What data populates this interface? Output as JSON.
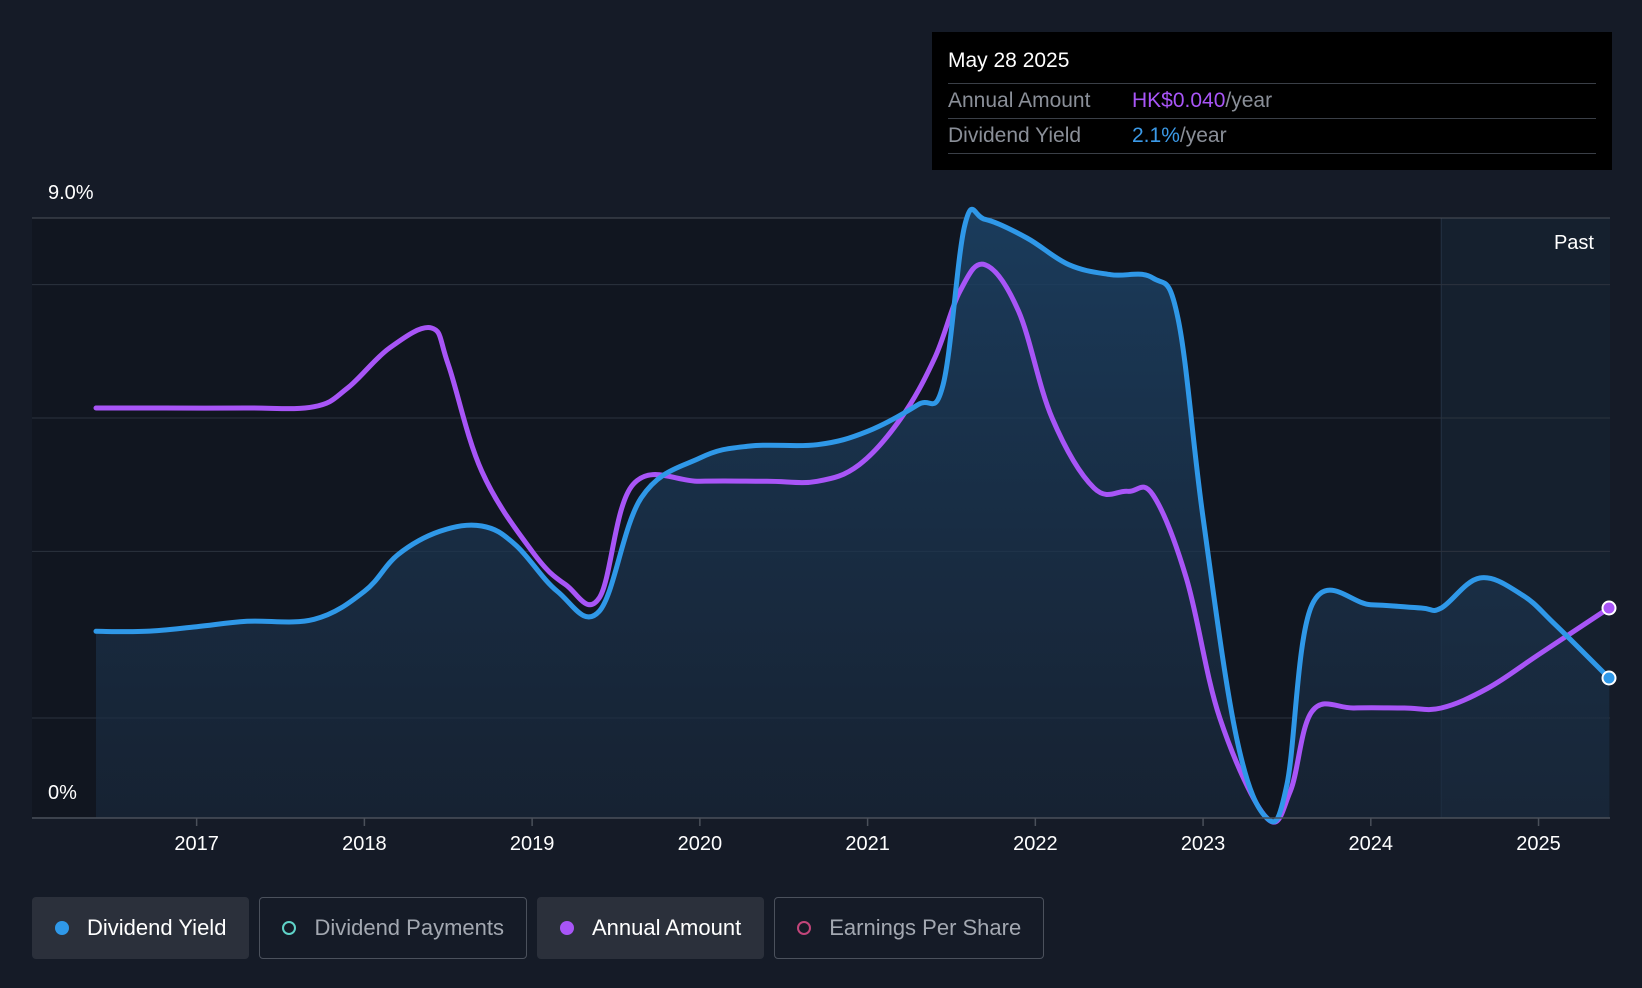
{
  "tooltip": {
    "date": "May 28 2025",
    "rows": [
      {
        "label": "Annual Amount",
        "value": "HK$0.040",
        "unit": "/year",
        "color": "#a855f7"
      },
      {
        "label": "Dividend Yield",
        "value": "2.1%",
        "unit": "/year",
        "color": "#3b9ae8"
      }
    ]
  },
  "past_label": "Past",
  "legend": [
    {
      "label": "Dividend Yield",
      "color": "#2f98e8",
      "filled": true,
      "active": true
    },
    {
      "label": "Dividend Payments",
      "color": "#5fd3c8",
      "filled": false,
      "active": false
    },
    {
      "label": "Annual Amount",
      "color": "#a855f7",
      "filled": true,
      "active": true
    },
    {
      "label": "Earnings Per Share",
      "color": "#c2457a",
      "filled": false,
      "active": false
    }
  ],
  "chart_data": {
    "type": "line",
    "y_axis": {
      "top_label": "9.0%",
      "bottom_label": "0%",
      "ylim": [
        0,
        9.0
      ],
      "unit": "%"
    },
    "x_axis": {
      "ticks": [
        "2017",
        "2018",
        "2019",
        "2020",
        "2021",
        "2022",
        "2023",
        "2024",
        "2025"
      ],
      "xlim": [
        2016.4,
        2025.42
      ]
    },
    "past_region_start": 2024.42,
    "series": [
      {
        "name": "Dividend Yield",
        "color": "#2f98e8",
        "fill": true,
        "points": [
          [
            2016.4,
            2.8
          ],
          [
            2016.7,
            2.8
          ],
          [
            2017.0,
            2.87
          ],
          [
            2017.3,
            2.95
          ],
          [
            2017.7,
            2.98
          ],
          [
            2018.0,
            3.4
          ],
          [
            2018.2,
            3.95
          ],
          [
            2018.45,
            4.3
          ],
          [
            2018.7,
            4.38
          ],
          [
            2018.9,
            4.1
          ],
          [
            2019.15,
            3.4
          ],
          [
            2019.4,
            3.1
          ],
          [
            2019.65,
            4.8
          ],
          [
            2020.0,
            5.4
          ],
          [
            2020.3,
            5.58
          ],
          [
            2020.7,
            5.6
          ],
          [
            2021.0,
            5.8
          ],
          [
            2021.3,
            6.2
          ],
          [
            2021.45,
            6.5
          ],
          [
            2021.58,
            8.9
          ],
          [
            2021.7,
            8.98
          ],
          [
            2021.95,
            8.7
          ],
          [
            2022.2,
            8.3
          ],
          [
            2022.45,
            8.15
          ],
          [
            2022.7,
            8.1
          ],
          [
            2022.85,
            7.5
          ],
          [
            2023.0,
            4.5
          ],
          [
            2023.2,
            1.2
          ],
          [
            2023.38,
            0.0
          ],
          [
            2023.5,
            0.5
          ],
          [
            2023.65,
            3.2
          ],
          [
            2024.0,
            3.2
          ],
          [
            2024.3,
            3.15
          ],
          [
            2024.42,
            3.15
          ],
          [
            2024.65,
            3.6
          ],
          [
            2024.9,
            3.35
          ],
          [
            2025.1,
            2.9
          ],
          [
            2025.42,
            2.1
          ]
        ]
      },
      {
        "name": "Annual Amount",
        "color": "#a855f7",
        "fill": false,
        "points": [
          [
            2016.4,
            6.15
          ],
          [
            2016.8,
            6.15
          ],
          [
            2017.3,
            6.15
          ],
          [
            2017.7,
            6.17
          ],
          [
            2017.9,
            6.45
          ],
          [
            2018.15,
            7.05
          ],
          [
            2018.4,
            7.35
          ],
          [
            2018.5,
            6.8
          ],
          [
            2018.7,
            5.2
          ],
          [
            2019.0,
            4.0
          ],
          [
            2019.2,
            3.5
          ],
          [
            2019.4,
            3.3
          ],
          [
            2019.6,
            5.0
          ],
          [
            2020.0,
            5.05
          ],
          [
            2020.4,
            5.05
          ],
          [
            2020.7,
            5.05
          ],
          [
            2020.95,
            5.3
          ],
          [
            2021.2,
            6.0
          ],
          [
            2021.4,
            6.9
          ],
          [
            2021.55,
            7.9
          ],
          [
            2021.7,
            8.3
          ],
          [
            2021.9,
            7.6
          ],
          [
            2022.1,
            6.0
          ],
          [
            2022.35,
            4.95
          ],
          [
            2022.55,
            4.9
          ],
          [
            2022.7,
            4.85
          ],
          [
            2022.9,
            3.6
          ],
          [
            2023.1,
            1.5
          ],
          [
            2023.38,
            0.0
          ],
          [
            2023.52,
            0.4
          ],
          [
            2023.65,
            1.6
          ],
          [
            2023.9,
            1.65
          ],
          [
            2024.2,
            1.65
          ],
          [
            2024.42,
            1.65
          ],
          [
            2024.7,
            1.95
          ],
          [
            2025.0,
            2.45
          ],
          [
            2025.42,
            3.15
          ]
        ]
      }
    ]
  }
}
